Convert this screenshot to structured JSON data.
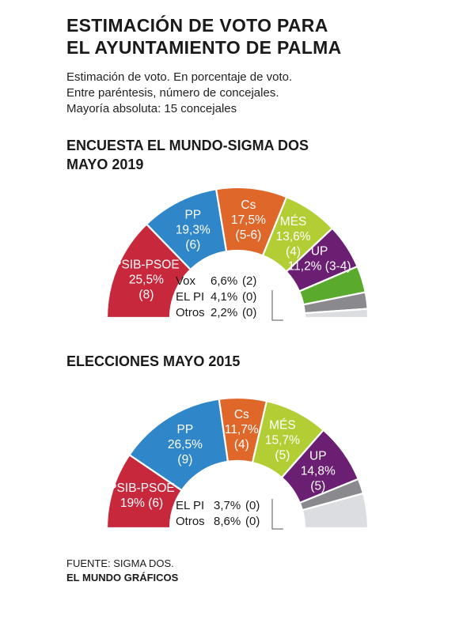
{
  "header": {
    "title_line1": "ESTIMACIÓN DE VOTO PARA",
    "title_line2": "EL AYUNTAMIENTO DE PALMA",
    "subtitle_line1": "Estimación de voto. En porcentaje de voto.",
    "subtitle_line2": "Entre paréntesis, número de concejales.",
    "subtitle_line3": "Mayoría absoluta: 15 concejales"
  },
  "colors": {
    "PSIB-PSOE": "#c8283c",
    "PP": "#2f86c8",
    "Cs": "#e0672a",
    "MÉS": "#b3cd35",
    "UP": "#6b1f73",
    "Vox": "#5aaa2d",
    "EL PI": "#8a8a8e",
    "Otros": "#dcdde1"
  },
  "chart_data": [
    {
      "type": "pie",
      "variant": "half-donut",
      "title": "ENCUESTA EL MUNDO-SIGMA DOS",
      "title_line2": "MAYO 2019",
      "categories": [
        "PSIB-PSOE",
        "PP",
        "Cs",
        "MÉS",
        "UP",
        "Vox",
        "EL PI",
        "Otros"
      ],
      "values": [
        25.5,
        19.3,
        17.5,
        13.6,
        11.2,
        6.6,
        4.1,
        2.2
      ],
      "seats": [
        "8",
        "6",
        "5-6",
        "4",
        "3-4",
        "2",
        "0",
        "0"
      ],
      "labels": [
        {
          "party": "PSIB-PSOE",
          "pct": "25,5%",
          "seats": "(8)"
        },
        {
          "party": "PP",
          "pct": "19,3%",
          "seats": "(6)"
        },
        {
          "party": "Cs",
          "pct": "17,5%",
          "seats": "(5-6)"
        },
        {
          "party": "MÉS",
          "pct": "13,6%",
          "seats": "(4)"
        },
        {
          "party": "UP",
          "pct": "11,2% (3-4)"
        }
      ],
      "small_labels": [
        {
          "party": "Vox",
          "pct": "6,6%",
          "seats": "(2)"
        },
        {
          "party": "EL PI",
          "pct": "4,1%",
          "seats": "(0)"
        },
        {
          "party": "Otros",
          "pct": "2,2%",
          "seats": "(0)"
        }
      ]
    },
    {
      "type": "pie",
      "variant": "half-donut",
      "title": "ELECCIONES MAYO 2015",
      "categories": [
        "PSIB-PSOE",
        "PP",
        "Cs",
        "MÉS",
        "UP",
        "EL PI",
        "Otros"
      ],
      "values": [
        19,
        26.5,
        11.7,
        15.7,
        14.8,
        3.7,
        8.6
      ],
      "seats": [
        "6",
        "9",
        "4",
        "5",
        "5",
        "0",
        "0"
      ],
      "labels": [
        {
          "party": "PSIB-PSOE",
          "pct": "19% (6)"
        },
        {
          "party": "PP",
          "pct": "26,5%",
          "seats": "(9)"
        },
        {
          "party": "Cs",
          "pct": "11,7%",
          "seats": "(4)"
        },
        {
          "party": "MÉS",
          "pct": "15,7%",
          "seats": "(5)"
        },
        {
          "party": "UP",
          "pct": "14,8%",
          "seats": "(5)"
        }
      ],
      "small_labels": [
        {
          "party": "EL PI",
          "pct": "3,7%",
          "seats": "(0)"
        },
        {
          "party": "Otros",
          "pct": "8,6%",
          "seats": "(0)"
        }
      ]
    }
  ],
  "footer": {
    "source": "FUENTE: SIGMA DOS.",
    "brand": "EL MUNDO GRÁFICOS"
  }
}
